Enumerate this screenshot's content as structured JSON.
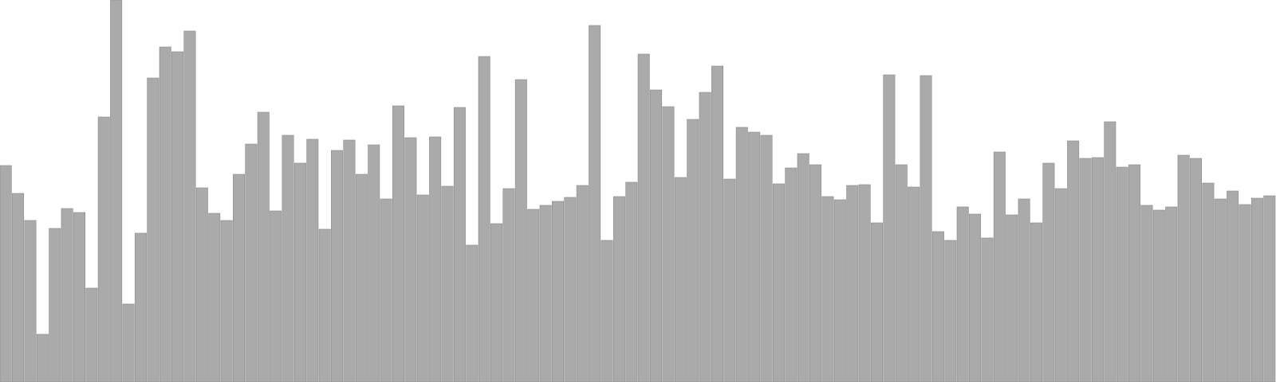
{
  "chart_data": {
    "type": "bar",
    "title": "",
    "xlabel": "",
    "ylabel": "",
    "ylim": [
      0,
      480
    ],
    "grid": false,
    "legend": "none",
    "bar_color": "#aaaaaa",
    "values": [
      272,
      237,
      203,
      60,
      193,
      218,
      213,
      118,
      333,
      480,
      98,
      187,
      382,
      421,
      415,
      441,
      244,
      212,
      203,
      261,
      299,
      339,
      215,
      310,
      275,
      305,
      192,
      291,
      304,
      261,
      298,
      230,
      347,
      307,
      235,
      308,
      246,
      345,
      172,
      409,
      199,
      243,
      380,
      217,
      222,
      227,
      232,
      247,
      448,
      178,
      233,
      251,
      412,
      367,
      346,
      257,
      330,
      364,
      397,
      255,
      320,
      314,
      310,
      249,
      269,
      287,
      273,
      233,
      229,
      247,
      248,
      200,
      386,
      273,
      245,
      385,
      189,
      178,
      220,
      211,
      181,
      289,
      210,
      230,
      200,
      275,
      243,
      303,
      281,
      282,
      327,
      270,
      273,
      222,
      216,
      220,
      285,
      281,
      250,
      230,
      240,
      223,
      231,
      234
    ]
  }
}
